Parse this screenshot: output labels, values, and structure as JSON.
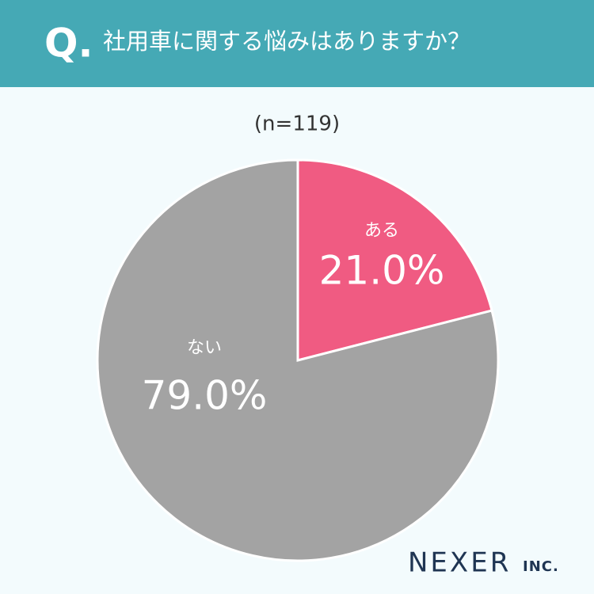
{
  "question_mark": "Q.",
  "logo": {
    "name": "NEXER",
    "suffix": "INC."
  },
  "chart_data": {
    "type": "pie",
    "title": "社用車に関する悩みはありますか？",
    "subtitle": "(n=119)",
    "categories": [
      "ある",
      "ない"
    ],
    "values": [
      21.0,
      79.0
    ],
    "value_labels": [
      "21.0%",
      "79.0%"
    ],
    "colors": [
      "#f05b82",
      "#a3a3a3"
    ]
  }
}
